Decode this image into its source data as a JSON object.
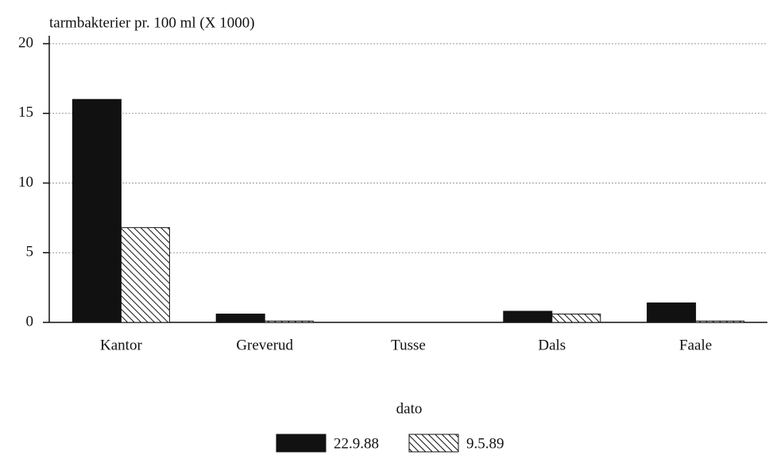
{
  "chart_data": {
    "type": "bar",
    "y_axis_label": "tarmbakterier pr. 100 ml (X 1000)",
    "x_axis_label": "dato",
    "categories": [
      "Kantor",
      "Greverud",
      "Tusse",
      "Dals",
      "Faale"
    ],
    "series": [
      {
        "name": "22.9.88",
        "color": "#111111",
        "pattern": "solid",
        "values": [
          16,
          0.6,
          0,
          0.8,
          1.4
        ]
      },
      {
        "name": "9.5.89",
        "color": "#111111",
        "pattern": "hatch",
        "values": [
          6.8,
          0.1,
          0,
          0.6,
          0.1
        ]
      }
    ],
    "ylim": [
      0,
      20
    ],
    "yticks": [
      0,
      5,
      10,
      15,
      20
    ],
    "grid": true,
    "legend": "bottom"
  }
}
